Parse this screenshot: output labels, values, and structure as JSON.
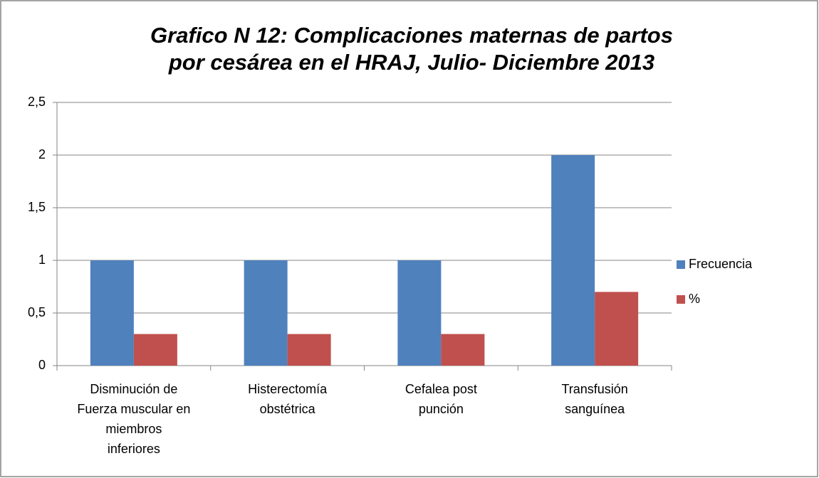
{
  "chart_data": {
    "type": "bar",
    "title": [
      "Grafico N  12: Complicaciones maternas de partos",
      "por cesárea en el HRAJ, Julio- Diciembre 2013"
    ],
    "categories": [
      [
        "Disminución de",
        "Fuerza muscular en",
        "miembros",
        "inferiores"
      ],
      [
        "Histerectomía",
        "obstétrica"
      ],
      [
        "Cefalea post",
        "punción"
      ],
      [
        "Transfusión",
        "sanguínea"
      ]
    ],
    "series": [
      {
        "name": "Frecuencia",
        "color": "#4f81bd",
        "values": [
          1,
          1,
          1,
          2
        ]
      },
      {
        "name": "%",
        "color": "#c0504d",
        "values": [
          0.3,
          0.3,
          0.3,
          0.7
        ]
      }
    ],
    "ylim": [
      0,
      2.5
    ],
    "yticks": [
      0,
      {
        "value": 0.5,
        "label": "0,5"
      },
      1,
      {
        "value": 1.5,
        "label": "1,5"
      },
      2,
      {
        "value": 2.5,
        "label": "2,5"
      }
    ],
    "grid": true,
    "legend": "right"
  }
}
